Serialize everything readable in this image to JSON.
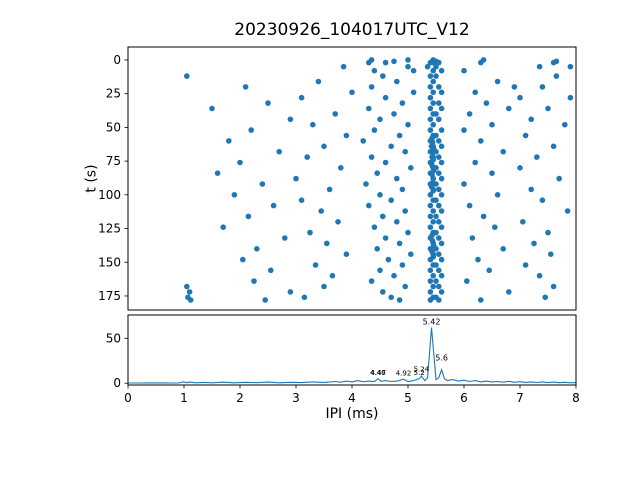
{
  "title": "20230926_104017UTC_V12",
  "xlabel": "IPI (ms)",
  "ylabel_top": "t (s)",
  "accent_color": "#1f77b4",
  "axis_color": "#000000",
  "background_color": "#ffffff",
  "chart_data": [
    {
      "type": "scatter",
      "ylabel": "t (s)",
      "xlim": [
        0,
        8
      ],
      "ylim": [
        -9.6,
        185.4
      ],
      "invert_y": true,
      "grid": false,
      "yticks": [
        0,
        25,
        50,
        75,
        100,
        125,
        150,
        175
      ],
      "xticks": [
        0,
        1,
        2,
        3,
        4,
        5,
        6,
        7,
        8
      ],
      "show_xticklabels": false,
      "points": [
        [
          4.35,
          0
        ],
        [
          5.0,
          0
        ],
        [
          5.45,
          0
        ],
        [
          6.35,
          0
        ],
        [
          4.75,
          1
        ],
        [
          5.5,
          1
        ],
        [
          7.65,
          1
        ],
        [
          4.3,
          2
        ],
        [
          4.6,
          2
        ],
        [
          5.4,
          2
        ],
        [
          5.45,
          2
        ],
        [
          5.55,
          2
        ],
        [
          6.3,
          2
        ],
        [
          7.6,
          2
        ],
        [
          3.85,
          5
        ],
        [
          5.0,
          5
        ],
        [
          5.35,
          5
        ],
        [
          5.5,
          5
        ],
        [
          7.35,
          5
        ],
        [
          7.9,
          5
        ],
        [
          4.4,
          8
        ],
        [
          5.1,
          8
        ],
        [
          5.45,
          8
        ],
        [
          5.6,
          8
        ],
        [
          6.0,
          8
        ],
        [
          1.05,
          12
        ],
        [
          4.55,
          12
        ],
        [
          5.4,
          12
        ],
        [
          5.5,
          12
        ],
        [
          7.65,
          12
        ],
        [
          3.4,
          16
        ],
        [
          4.8,
          16
        ],
        [
          5.45,
          16
        ],
        [
          6.6,
          16
        ],
        [
          2.1,
          20
        ],
        [
          4.35,
          20
        ],
        [
          5.4,
          20
        ],
        [
          5.55,
          20
        ],
        [
          6.9,
          20
        ],
        [
          7.4,
          20
        ],
        [
          4.0,
          24
        ],
        [
          5.1,
          24
        ],
        [
          5.45,
          24
        ],
        [
          5.6,
          24
        ],
        [
          6.2,
          24
        ],
        [
          3.1,
          28
        ],
        [
          4.6,
          28
        ],
        [
          5.4,
          28
        ],
        [
          7.0,
          28
        ],
        [
          7.9,
          28
        ],
        [
          2.5,
          32
        ],
        [
          4.9,
          32
        ],
        [
          5.45,
          32
        ],
        [
          5.55,
          32
        ],
        [
          6.4,
          32
        ],
        [
          1.5,
          36
        ],
        [
          4.3,
          36
        ],
        [
          5.4,
          36
        ],
        [
          5.6,
          36
        ],
        [
          6.8,
          36
        ],
        [
          7.5,
          36
        ],
        [
          3.7,
          40
        ],
        [
          4.75,
          40
        ],
        [
          5.45,
          40
        ],
        [
          5.5,
          40
        ],
        [
          6.1,
          40
        ],
        [
          2.9,
          44
        ],
        [
          4.5,
          44
        ],
        [
          5.4,
          44
        ],
        [
          5.55,
          44
        ],
        [
          7.2,
          44
        ],
        [
          3.3,
          48
        ],
        [
          5.0,
          48
        ],
        [
          5.45,
          48
        ],
        [
          6.5,
          48
        ],
        [
          7.8,
          48
        ],
        [
          2.2,
          52
        ],
        [
          4.4,
          52
        ],
        [
          5.4,
          52
        ],
        [
          5.6,
          52
        ],
        [
          6.0,
          52
        ],
        [
          3.9,
          56
        ],
        [
          4.85,
          56
        ],
        [
          5.45,
          56
        ],
        [
          5.5,
          56
        ],
        [
          7.1,
          56
        ],
        [
          1.8,
          60
        ],
        [
          4.2,
          60
        ],
        [
          5.4,
          60
        ],
        [
          5.55,
          60
        ],
        [
          6.3,
          60
        ],
        [
          3.5,
          64
        ],
        [
          4.7,
          64
        ],
        [
          5.45,
          64
        ],
        [
          5.6,
          64
        ],
        [
          7.6,
          64
        ],
        [
          2.7,
          68
        ],
        [
          4.95,
          68
        ],
        [
          5.4,
          68
        ],
        [
          5.5,
          68
        ],
        [
          6.7,
          68
        ],
        [
          3.2,
          72
        ],
        [
          4.35,
          72
        ],
        [
          5.45,
          72
        ],
        [
          5.55,
          72
        ],
        [
          7.3,
          72
        ],
        [
          2.0,
          76
        ],
        [
          4.6,
          76
        ],
        [
          5.4,
          76
        ],
        [
          5.6,
          76
        ],
        [
          6.2,
          76
        ],
        [
          3.8,
          80
        ],
        [
          5.05,
          80
        ],
        [
          5.45,
          80
        ],
        [
          5.5,
          80
        ],
        [
          7.0,
          80
        ],
        [
          1.6,
          84
        ],
        [
          4.45,
          84
        ],
        [
          5.4,
          84
        ],
        [
          5.55,
          84
        ],
        [
          6.5,
          84
        ],
        [
          3.0,
          88
        ],
        [
          4.8,
          88
        ],
        [
          5.45,
          88
        ],
        [
          5.6,
          88
        ],
        [
          7.7,
          88
        ],
        [
          2.4,
          92
        ],
        [
          4.25,
          92
        ],
        [
          5.4,
          92
        ],
        [
          5.5,
          92
        ],
        [
          6.0,
          92
        ],
        [
          3.6,
          96
        ],
        [
          4.9,
          96
        ],
        [
          5.45,
          96
        ],
        [
          5.55,
          96
        ],
        [
          7.2,
          96
        ],
        [
          1.9,
          100
        ],
        [
          4.5,
          100
        ],
        [
          5.4,
          100
        ],
        [
          5.6,
          100
        ],
        [
          6.6,
          100
        ],
        [
          3.1,
          104
        ],
        [
          4.7,
          104
        ],
        [
          5.45,
          104
        ],
        [
          5.5,
          104
        ],
        [
          7.4,
          104
        ],
        [
          2.6,
          108
        ],
        [
          4.3,
          108
        ],
        [
          5.4,
          108
        ],
        [
          5.55,
          108
        ],
        [
          6.1,
          108
        ],
        [
          3.45,
          112
        ],
        [
          4.95,
          112
        ],
        [
          5.45,
          112
        ],
        [
          5.6,
          112
        ],
        [
          7.85,
          112
        ],
        [
          2.15,
          116
        ],
        [
          4.55,
          116
        ],
        [
          5.4,
          116
        ],
        [
          5.5,
          116
        ],
        [
          6.35,
          116
        ],
        [
          3.75,
          120
        ],
        [
          4.8,
          120
        ],
        [
          5.45,
          120
        ],
        [
          5.55,
          120
        ],
        [
          7.05,
          120
        ],
        [
          1.7,
          124
        ],
        [
          4.4,
          124
        ],
        [
          5.4,
          124
        ],
        [
          5.6,
          124
        ],
        [
          6.55,
          124
        ],
        [
          3.25,
          128
        ],
        [
          5.0,
          128
        ],
        [
          5.45,
          128
        ],
        [
          5.5,
          128
        ],
        [
          7.5,
          128
        ],
        [
          2.8,
          132
        ],
        [
          4.6,
          132
        ],
        [
          5.4,
          132
        ],
        [
          5.55,
          132
        ],
        [
          6.15,
          132
        ],
        [
          3.55,
          136
        ],
        [
          4.85,
          136
        ],
        [
          5.45,
          136
        ],
        [
          5.6,
          136
        ],
        [
          7.25,
          136
        ],
        [
          2.3,
          140
        ],
        [
          4.45,
          140
        ],
        [
          5.4,
          140
        ],
        [
          5.5,
          140
        ],
        [
          6.7,
          140
        ],
        [
          3.9,
          144
        ],
        [
          5.05,
          144
        ],
        [
          5.45,
          144
        ],
        [
          5.55,
          144
        ],
        [
          7.55,
          144
        ],
        [
          2.05,
          148
        ],
        [
          4.65,
          148
        ],
        [
          5.4,
          148
        ],
        [
          5.6,
          148
        ],
        [
          6.25,
          148
        ],
        [
          3.35,
          152
        ],
        [
          4.9,
          152
        ],
        [
          5.45,
          152
        ],
        [
          5.5,
          152
        ],
        [
          7.1,
          152
        ],
        [
          2.55,
          156
        ],
        [
          4.5,
          156
        ],
        [
          5.4,
          156
        ],
        [
          5.55,
          156
        ],
        [
          6.45,
          156
        ],
        [
          3.65,
          160
        ],
        [
          4.75,
          160
        ],
        [
          5.45,
          160
        ],
        [
          5.6,
          160
        ],
        [
          7.35,
          160
        ],
        [
          2.25,
          164
        ],
        [
          4.35,
          164
        ],
        [
          5.4,
          164
        ],
        [
          5.5,
          164
        ],
        [
          6.05,
          164
        ],
        [
          1.05,
          168
        ],
        [
          3.5,
          168
        ],
        [
          4.95,
          168
        ],
        [
          5.45,
          168
        ],
        [
          5.55,
          168
        ],
        [
          7.6,
          168
        ],
        [
          1.1,
          172
        ],
        [
          2.9,
          172
        ],
        [
          4.55,
          172
        ],
        [
          5.4,
          172
        ],
        [
          5.6,
          172
        ],
        [
          6.8,
          172
        ],
        [
          1.07,
          176
        ],
        [
          3.15,
          176
        ],
        [
          4.7,
          176
        ],
        [
          5.45,
          176
        ],
        [
          5.5,
          176
        ],
        [
          7.45,
          176
        ],
        [
          1.12,
          178
        ],
        [
          2.45,
          178
        ],
        [
          4.85,
          178
        ],
        [
          5.4,
          178
        ],
        [
          5.55,
          178
        ],
        [
          6.3,
          178
        ],
        [
          5.43,
          58
        ],
        [
          5.44,
          61
        ],
        [
          5.42,
          64
        ],
        [
          5.46,
          66
        ],
        [
          5.44,
          69
        ],
        [
          5.43,
          72
        ],
        [
          5.45,
          74
        ],
        [
          5.42,
          77
        ],
        [
          5.44,
          79
        ],
        [
          5.46,
          82
        ],
        [
          5.43,
          85
        ],
        [
          5.45,
          88
        ],
        [
          5.44,
          91
        ],
        [
          5.42,
          94
        ],
        [
          5.45,
          97
        ],
        [
          5.43,
          130
        ],
        [
          5.44,
          134
        ],
        [
          5.46,
          138
        ],
        [
          5.43,
          142
        ],
        [
          5.45,
          146
        ]
      ]
    },
    {
      "type": "line",
      "xlabel": "IPI (ms)",
      "xlim": [
        0,
        8
      ],
      "ylim": [
        -2,
        76
      ],
      "invert_y": false,
      "grid": false,
      "yticks": [
        0,
        50
      ],
      "xticks": [
        0,
        1,
        2,
        3,
        4,
        5,
        6,
        7,
        8
      ],
      "show_xticklabels": true,
      "points": [
        [
          0,
          0.2
        ],
        [
          0.5,
          0.3
        ],
        [
          0.9,
          0.2
        ],
        [
          1.0,
          1.6
        ],
        [
          1.05,
          0.5
        ],
        [
          1.1,
          1.2
        ],
        [
          1.2,
          0.4
        ],
        [
          1.35,
          0.9
        ],
        [
          1.5,
          0.4
        ],
        [
          1.7,
          1.1
        ],
        [
          1.9,
          0.5
        ],
        [
          2.1,
          1.0
        ],
        [
          2.3,
          0.6
        ],
        [
          2.5,
          1.2
        ],
        [
          2.7,
          0.5
        ],
        [
          2.9,
          1.0
        ],
        [
          3.1,
          0.7
        ],
        [
          3.3,
          1.4
        ],
        [
          3.5,
          0.9
        ],
        [
          3.7,
          1.9
        ],
        [
          3.8,
          1.1
        ],
        [
          3.9,
          2.4
        ],
        [
          4.0,
          1.4
        ],
        [
          4.1,
          2.9
        ],
        [
          4.2,
          1.7
        ],
        [
          4.3,
          2.4
        ],
        [
          4.4,
          1.9
        ],
        [
          4.46,
          5.0
        ],
        [
          4.52,
          2.1
        ],
        [
          4.6,
          2.9
        ],
        [
          4.7,
          1.9
        ],
        [
          4.8,
          2.4
        ],
        [
          4.92,
          4.5
        ],
        [
          5.0,
          1.9
        ],
        [
          5.1,
          2.9
        ],
        [
          5.2,
          5.0
        ],
        [
          5.24,
          8.0
        ],
        [
          5.3,
          2.9
        ],
        [
          5.35,
          6.0
        ],
        [
          5.42,
          62.0
        ],
        [
          5.5,
          4.0
        ],
        [
          5.55,
          6.0
        ],
        [
          5.6,
          15.0
        ],
        [
          5.65,
          5.0
        ],
        [
          5.7,
          3.0
        ],
        [
          5.8,
          4.0
        ],
        [
          5.9,
          2.4
        ],
        [
          6.0,
          3.4
        ],
        [
          6.1,
          1.9
        ],
        [
          6.2,
          2.9
        ],
        [
          6.3,
          1.4
        ],
        [
          6.4,
          2.4
        ],
        [
          6.5,
          1.4
        ],
        [
          6.6,
          1.9
        ],
        [
          6.7,
          1.1
        ],
        [
          6.8,
          2.1
        ],
        [
          6.9,
          1.0
        ],
        [
          7.0,
          1.7
        ],
        [
          7.1,
          0.9
        ],
        [
          7.2,
          1.4
        ],
        [
          7.3,
          0.8
        ],
        [
          7.4,
          1.4
        ],
        [
          7.5,
          0.7
        ],
        [
          7.6,
          1.2
        ],
        [
          7.7,
          0.6
        ],
        [
          7.8,
          1.0
        ],
        [
          7.9,
          0.5
        ],
        [
          8.0,
          0.7
        ]
      ],
      "annotations": [
        {
          "x": 5.42,
          "y": 62,
          "label": "5.42",
          "size": 8
        },
        {
          "x": 5.6,
          "y": 22,
          "label": "5.6",
          "size": 8
        },
        {
          "x": 4.46,
          "y": 6,
          "label": "4.46",
          "size": 7
        },
        {
          "x": 4.47,
          "y": 6,
          "label": "4.47",
          "size": 7
        },
        {
          "x": 4.92,
          "y": 5.5,
          "label": "4.92",
          "size": 7
        },
        {
          "x": 5.2,
          "y": 6,
          "label": "5.2",
          "size": 7
        },
        {
          "x": 5.24,
          "y": 9.5,
          "label": "5.24",
          "size": 7
        }
      ]
    }
  ]
}
